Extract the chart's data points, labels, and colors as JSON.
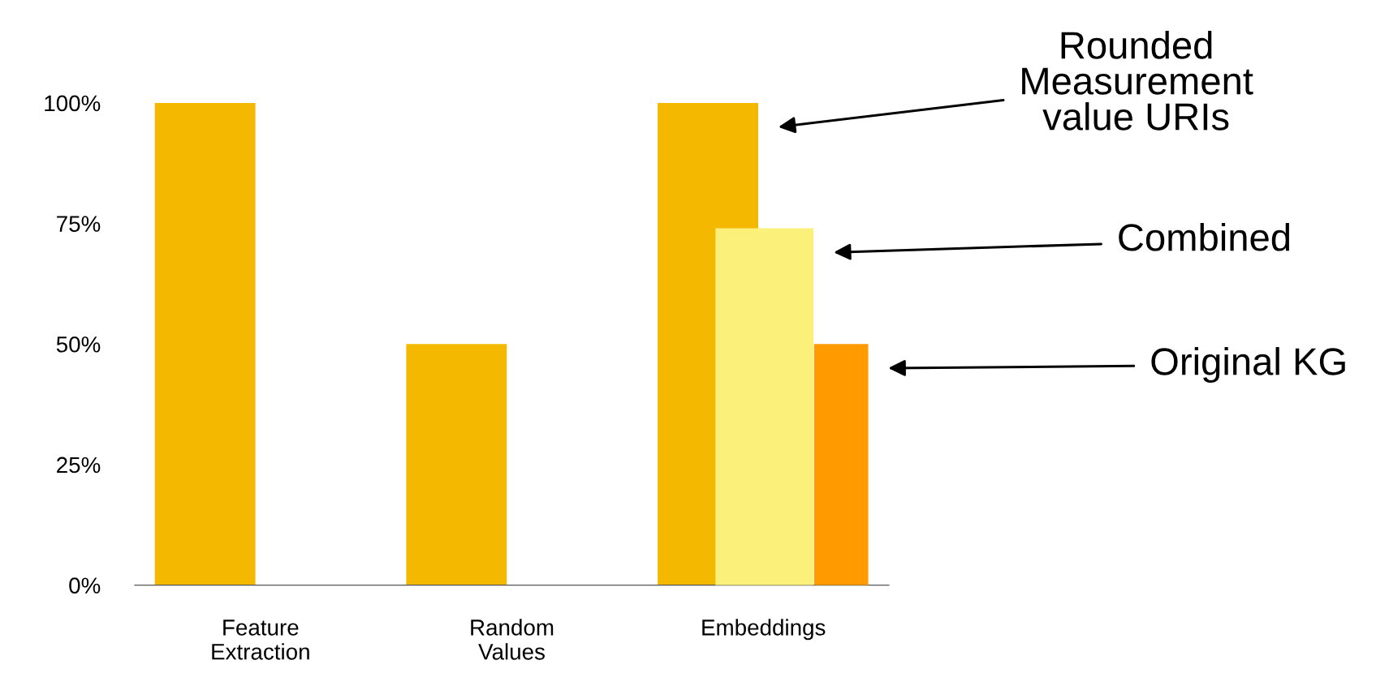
{
  "chart_data": {
    "type": "bar",
    "categories": [
      "Feature\nExtraction",
      "Random\nValues",
      "Embeddings"
    ],
    "series": [
      {
        "name": "Rounded\nMeasurement\nvalue URIs",
        "color": "#f5b800",
        "values": [
          100,
          50,
          100
        ]
      },
      {
        "name": "Combined",
        "color": "#faf07a",
        "values": [
          null,
          null,
          74
        ]
      },
      {
        "name": "Original KG",
        "color": "#ff9a00",
        "values": [
          null,
          null,
          50
        ]
      }
    ],
    "ylim": [
      0,
      100
    ],
    "yticks": [
      {
        "value": 0,
        "label": "0%"
      },
      {
        "value": 25,
        "label": "25%"
      },
      {
        "value": 50,
        "label": "50%"
      },
      {
        "value": 75,
        "label": "75%"
      },
      {
        "value": 100,
        "label": "100%"
      }
    ],
    "grid": false,
    "legend": false
  }
}
